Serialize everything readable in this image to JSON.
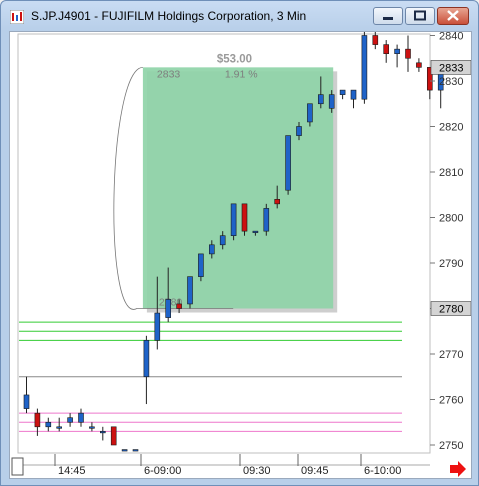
{
  "window": {
    "title": "S.JP.J4901 - FUJIFILM Holdings Corporation, 3 Min",
    "icon": "chart-app-icon",
    "buttons": [
      "minimize-icon",
      "maximize-icon",
      "close-icon"
    ]
  },
  "chart_data": {
    "type": "candlestick",
    "ylim": [
      2745,
      2843
    ],
    "price_ticks": [
      "2840",
      "2830",
      "2820",
      "2810",
      "2800",
      "2790",
      "2780",
      "2770",
      "2760",
      "2750"
    ],
    "price_tick_values": [
      2840,
      2830,
      2820,
      2810,
      2800,
      2790,
      2780,
      2770,
      2760,
      2750
    ],
    "time_labels": [
      "14:45",
      "6-09:00",
      "09:30",
      "09:45",
      "6-10:00"
    ],
    "price_flags": [
      {
        "label": "2833",
        "value": 2833
      },
      {
        "label": "2780",
        "value": 2780
      }
    ],
    "measure": {
      "change": "$53.00",
      "percent": "1.91 %",
      "high_label": "2833",
      "low_label": "2780",
      "from_price": 2780,
      "to_price": 2833,
      "from_bar": 11,
      "to_bar": 28
    },
    "candles": [
      {
        "o": 2758,
        "h": 2765,
        "l": 2757,
        "c": 2761
      },
      {
        "o": 2757,
        "h": 2758,
        "l": 2752,
        "c": 2754
      },
      {
        "o": 2754,
        "h": 2756,
        "l": 2753,
        "c": 2755
      },
      {
        "o": 2754,
        "h": 2756,
        "l": 2753,
        "c": 2754
      },
      {
        "o": 2755,
        "h": 2757,
        "l": 2754,
        "c": 2756
      },
      {
        "o": 2755,
        "h": 2758,
        "l": 2754,
        "c": 2757
      },
      {
        "o": 2754,
        "h": 2755,
        "l": 2753,
        "c": 2754
      },
      {
        "o": 2753,
        "h": 2754,
        "l": 2751,
        "c": 2753
      },
      {
        "o": 2754,
        "h": 2754,
        "l": 2750,
        "c": 2750
      },
      {
        "o": 2749,
        "h": 2749,
        "l": 2749,
        "c": 2749
      },
      {
        "o": 2749,
        "h": 2749,
        "l": 2749,
        "c": 2749
      },
      {
        "o": 2765,
        "h": 2774,
        "l": 2759,
        "c": 2773
      },
      {
        "o": 2773,
        "h": 2787,
        "l": 2771,
        "c": 2779
      },
      {
        "o": 2778,
        "h": 2789,
        "l": 2777,
        "c": 2782
      },
      {
        "o": 2781,
        "h": 2782,
        "l": 2779,
        "c": 2780
      },
      {
        "o": 2781,
        "h": 2787,
        "l": 2780,
        "c": 2787
      },
      {
        "o": 2787,
        "h": 2792,
        "l": 2786,
        "c": 2792
      },
      {
        "o": 2792,
        "h": 2795,
        "l": 2791,
        "c": 2794
      },
      {
        "o": 2794,
        "h": 2797,
        "l": 2793,
        "c": 2796
      },
      {
        "o": 2796,
        "h": 2803,
        "l": 2795,
        "c": 2803
      },
      {
        "o": 2803,
        "h": 2803,
        "l": 2796,
        "c": 2797
      },
      {
        "o": 2797,
        "h": 2797,
        "l": 2796,
        "c": 2797
      },
      {
        "o": 2797,
        "h": 2803,
        "l": 2796,
        "c": 2802
      },
      {
        "o": 2804,
        "h": 2807,
        "l": 2802,
        "c": 2803
      },
      {
        "o": 2806,
        "h": 2818,
        "l": 2805,
        "c": 2818
      },
      {
        "o": 2818,
        "h": 2821,
        "l": 2817,
        "c": 2820
      },
      {
        "o": 2821,
        "h": 2825,
        "l": 2820,
        "c": 2825
      },
      {
        "o": 2825,
        "h": 2831,
        "l": 2824,
        "c": 2827
      },
      {
        "o": 2824,
        "h": 2828,
        "l": 2823,
        "c": 2827
      },
      {
        "o": 2827,
        "h": 2828,
        "l": 2826,
        "c": 2828
      },
      {
        "o": 2826,
        "h": 2828,
        "l": 2824,
        "c": 2828
      },
      {
        "o": 2826,
        "h": 2841,
        "l": 2825,
        "c": 2840
      },
      {
        "o": 2840,
        "h": 2841,
        "l": 2837,
        "c": 2838
      },
      {
        "o": 2838,
        "h": 2839,
        "l": 2834,
        "c": 2836
      },
      {
        "o": 2836,
        "h": 2838,
        "l": 2833,
        "c": 2837
      },
      {
        "o": 2837,
        "h": 2840,
        "l": 2832,
        "c": 2835
      },
      {
        "o": 2834,
        "h": 2835,
        "l": 2832,
        "c": 2833
      },
      {
        "o": 2833,
        "h": 2833,
        "l": 2826,
        "c": 2828
      },
      {
        "o": 2828,
        "h": 2833,
        "l": 2824,
        "c": 2833
      }
    ],
    "levels": [
      {
        "value": 2777,
        "color": "#33cc33"
      },
      {
        "value": 2775,
        "color": "#33cc33"
      },
      {
        "value": 2773,
        "color": "#33cc33"
      },
      {
        "value": 2765,
        "color": "#888888"
      },
      {
        "value": 2757,
        "color": "#ee77cc"
      },
      {
        "value": 2755,
        "color": "#ee77cc"
      },
      {
        "value": 2753,
        "color": "#ee77cc"
      }
    ],
    "colors": {
      "up": "#1f63c8",
      "down": "#cc1111",
      "zone": "#8fd4a8",
      "flag_bg": "#d4d4d4"
    }
  }
}
